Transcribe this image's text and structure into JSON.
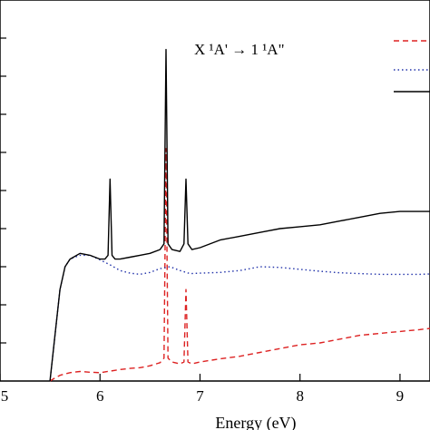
{
  "chart_data": {
    "type": "line",
    "title": "",
    "annotation": "X ¹A' → 1 ¹A\"",
    "xlabel": "Energy (eV)",
    "ylabel": "",
    "xlim": [
      5,
      9.3
    ],
    "ylim": [
      0,
      1
    ],
    "xticks": [
      5,
      6,
      7,
      8,
      9
    ],
    "xtick_labels": [
      "5",
      "6",
      "7",
      "8",
      "9"
    ],
    "yticks": [
      0.1,
      0.2,
      0.3,
      0.4,
      0.5,
      0.6,
      0.7,
      0.8,
      0.9
    ],
    "grid": false,
    "legend": {
      "placement": "top-right",
      "entries": [
        {
          "name": "",
          "style": "dashed",
          "color": "#dd2222"
        },
        {
          "name": "",
          "style": "dotted",
          "color": "#2233aa"
        },
        {
          "name": "",
          "style": "solid",
          "color": "#000000"
        }
      ]
    },
    "series": [
      {
        "style": "dashed",
        "color": "#dd2222",
        "x": [
          5.5,
          5.55,
          5.6,
          5.7,
          5.8,
          5.9,
          6.0,
          6.1,
          6.2,
          6.3,
          6.4,
          6.5,
          6.6,
          6.64,
          6.66,
          6.68,
          6.72,
          6.8,
          6.84,
          6.86,
          6.88,
          6.92,
          7.0,
          7.2,
          7.4,
          7.6,
          7.8,
          8.0,
          8.2,
          8.4,
          8.6,
          8.8,
          9.0,
          9.2,
          9.3
        ],
        "y": [
          0.0,
          0.008,
          0.015,
          0.022,
          0.025,
          0.023,
          0.022,
          0.026,
          0.03,
          0.033,
          0.035,
          0.04,
          0.048,
          0.06,
          0.61,
          0.06,
          0.05,
          0.045,
          0.05,
          0.24,
          0.05,
          0.045,
          0.05,
          0.058,
          0.065,
          0.075,
          0.085,
          0.095,
          0.1,
          0.11,
          0.12,
          0.125,
          0.13,
          0.135,
          0.138
        ]
      },
      {
        "style": "dotted",
        "color": "#2233aa",
        "x": [
          5.5,
          5.55,
          5.6,
          5.65,
          5.7,
          5.8,
          5.9,
          6.0,
          6.1,
          6.2,
          6.3,
          6.4,
          6.5,
          6.6,
          6.7,
          6.8,
          6.9,
          7.0,
          7.2,
          7.4,
          7.6,
          7.8,
          8.0,
          8.2,
          8.4,
          8.6,
          8.8,
          9.0,
          9.2,
          9.3
        ],
        "y": [
          0.0,
          0.12,
          0.24,
          0.3,
          0.32,
          0.33,
          0.33,
          0.318,
          0.305,
          0.29,
          0.283,
          0.28,
          0.285,
          0.295,
          0.3,
          0.29,
          0.282,
          0.283,
          0.285,
          0.29,
          0.3,
          0.298,
          0.293,
          0.288,
          0.284,
          0.282,
          0.28,
          0.28,
          0.28,
          0.281
        ]
      },
      {
        "style": "solid",
        "color": "#000000",
        "x": [
          5.5,
          5.55,
          5.6,
          5.65,
          5.7,
          5.8,
          5.9,
          6.0,
          6.05,
          6.08,
          6.1,
          6.12,
          6.15,
          6.2,
          6.3,
          6.4,
          6.5,
          6.6,
          6.64,
          6.66,
          6.68,
          6.72,
          6.8,
          6.84,
          6.86,
          6.88,
          6.92,
          7.0,
          7.2,
          7.4,
          7.6,
          7.8,
          8.0,
          8.2,
          8.4,
          8.6,
          8.8,
          9.0,
          9.2,
          9.3
        ],
        "y": [
          0.0,
          0.12,
          0.24,
          0.3,
          0.32,
          0.335,
          0.33,
          0.32,
          0.32,
          0.33,
          0.53,
          0.33,
          0.32,
          0.32,
          0.325,
          0.33,
          0.335,
          0.345,
          0.36,
          0.87,
          0.36,
          0.345,
          0.34,
          0.36,
          0.53,
          0.36,
          0.345,
          0.35,
          0.37,
          0.38,
          0.39,
          0.4,
          0.405,
          0.41,
          0.42,
          0.43,
          0.44,
          0.445,
          0.445,
          0.445
        ]
      }
    ]
  }
}
